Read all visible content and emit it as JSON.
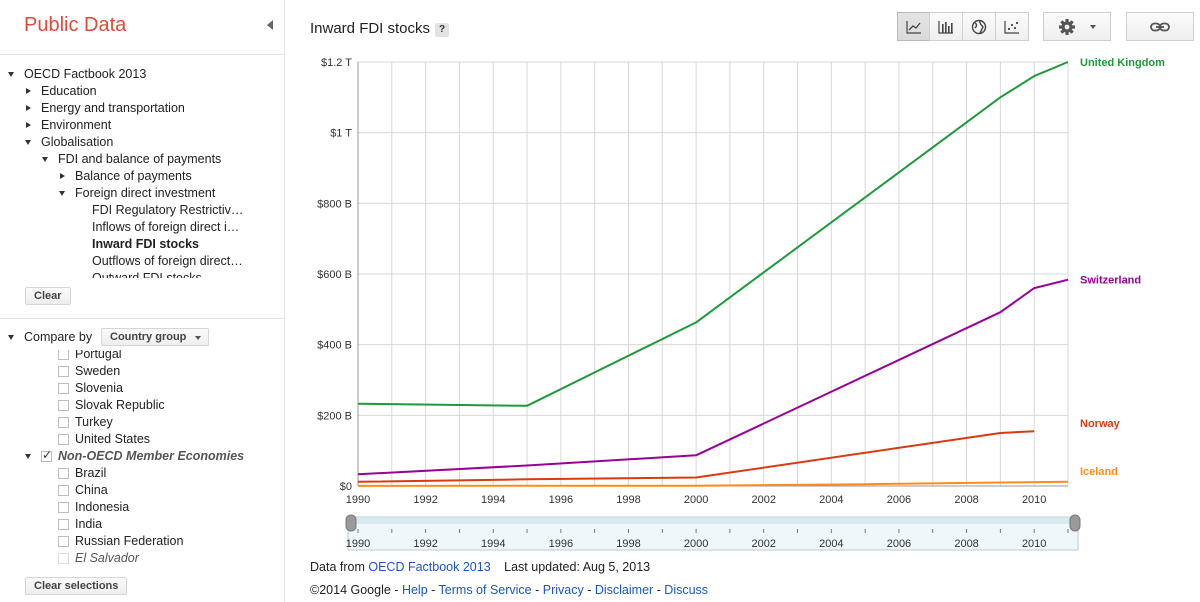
{
  "app": {
    "title": "Public Data"
  },
  "sidebar": {
    "tree": [
      {
        "label": "OECD Factbook 2013",
        "level": 0,
        "state": "open"
      },
      {
        "label": "Education",
        "level": 1,
        "state": "closed"
      },
      {
        "label": "Energy and transportation",
        "level": 1,
        "state": "closed"
      },
      {
        "label": "Environment",
        "level": 1,
        "state": "closed"
      },
      {
        "label": "Globalisation",
        "level": 1,
        "state": "open"
      },
      {
        "label": "FDI and balance of payments",
        "level": 2,
        "state": "open"
      },
      {
        "label": "Balance of payments",
        "level": 3,
        "state": "closed"
      },
      {
        "label": "Foreign direct investment",
        "level": 3,
        "state": "open"
      },
      {
        "label": "FDI Regulatory Restrictiv…",
        "level": 4,
        "state": "leaf"
      },
      {
        "label": "Inflows of foreign direct i…",
        "level": 4,
        "state": "leaf"
      },
      {
        "label": "Inward FDI stocks",
        "level": 4,
        "state": "leaf",
        "selected": true
      },
      {
        "label": "Outflows of foreign direct…",
        "level": 4,
        "state": "leaf"
      },
      {
        "label": "Outward FDI stocks",
        "level": 4,
        "state": "leaf"
      }
    ],
    "clear_label": "Clear",
    "compare_by_label": "Compare by",
    "compare_by_value": "Country group",
    "countries": [
      {
        "label": "Portugal",
        "checked": false,
        "indent": 1
      },
      {
        "label": "Sweden",
        "checked": false,
        "indent": 1
      },
      {
        "label": "Slovenia",
        "checked": false,
        "indent": 1
      },
      {
        "label": "Slovak Republic",
        "checked": false,
        "indent": 1
      },
      {
        "label": "Turkey",
        "checked": false,
        "indent": 1
      },
      {
        "label": "United States",
        "checked": false,
        "indent": 1
      },
      {
        "label": "Non-OECD Member Economies",
        "checked": true,
        "indent": 0,
        "group": true
      },
      {
        "label": "Brazil",
        "checked": false,
        "indent": 1
      },
      {
        "label": "China",
        "checked": false,
        "indent": 1
      },
      {
        "label": "Indonesia",
        "checked": false,
        "indent": 1
      },
      {
        "label": "India",
        "checked": false,
        "indent": 1
      },
      {
        "label": "Russian Federation",
        "checked": false,
        "indent": 1
      },
      {
        "label": "El Salvador",
        "checked": false,
        "indent": 1,
        "muted": true
      }
    ],
    "clear_selections_label": "Clear selections"
  },
  "main": {
    "chart_title": "Inward FDI stocks",
    "help_label": "?",
    "toolbar": [
      {
        "icon": "line-chart-icon",
        "active": true
      },
      {
        "icon": "bar-chart-icon",
        "active": false
      },
      {
        "icon": "globe-map-icon",
        "active": false
      },
      {
        "icon": "scatter-chart-icon",
        "active": false
      }
    ],
    "settings_icon": "gear-icon",
    "link_icon": "link-icon",
    "footer": {
      "data_from_prefix": "Data from",
      "source_link": "OECD Factbook 2013",
      "last_updated": "Last updated: Aug 5, 2013",
      "copyright": "©2014 Google",
      "links": [
        "Help",
        "Terms of Service",
        "Privacy",
        "Disclaimer",
        "Discuss"
      ],
      "separator": " - "
    }
  },
  "colors": {
    "brand": "#dd4b39",
    "uk": "#1e9a3c",
    "switzerland": "#990099",
    "norway": "#dc3912",
    "iceland": "#ff8c1a",
    "grid": "#d8d8d8"
  },
  "chart_data": {
    "type": "line",
    "title": "Inward FDI stocks",
    "xlabel": "",
    "ylabel": "",
    "xlim": [
      1990,
      2011
    ],
    "ylim": [
      0,
      1200
    ],
    "y_unit": "billion USD",
    "y_ticks": [
      "$0",
      "$200 B",
      "$400 B",
      "$600 B",
      "$800 B",
      "$1 T",
      "$1.2 T"
    ],
    "x_ticks": [
      "1990",
      "1992",
      "1994",
      "1996",
      "1998",
      "2000",
      "2002",
      "2004",
      "2006",
      "2008",
      "2010"
    ],
    "grid": true,
    "legend": "inline-right",
    "series": [
      {
        "name": "United Kingdom",
        "color": "#1e9a3c",
        "points": [
          [
            1990,
            233
          ],
          [
            1995,
            227
          ],
          [
            2000,
            463
          ],
          [
            2009,
            1100
          ],
          [
            2010,
            1160
          ],
          [
            2011,
            1200
          ]
        ]
      },
      {
        "name": "Switzerland",
        "color": "#990099",
        "points": [
          [
            1990,
            33
          ],
          [
            1995,
            58
          ],
          [
            2000,
            87
          ],
          [
            2009,
            492
          ],
          [
            2010,
            560
          ],
          [
            2011,
            584
          ]
        ]
      },
      {
        "name": "Norway",
        "color": "#dc3912",
        "points": [
          [
            1990,
            12
          ],
          [
            1995,
            19
          ],
          [
            2000,
            24
          ],
          [
            2009,
            150
          ],
          [
            2010,
            155
          ]
        ]
      },
      {
        "name": "Iceland",
        "color": "#ff8c1a",
        "points": [
          [
            1990,
            0.3
          ],
          [
            1995,
            0.5
          ],
          [
            2000,
            0.5
          ],
          [
            2005,
            5
          ],
          [
            2009,
            10
          ],
          [
            2011,
            12
          ]
        ]
      }
    ],
    "timeline": {
      "x_ticks": [
        "1990",
        "1992",
        "1994",
        "1996",
        "1998",
        "2000",
        "2002",
        "2004",
        "2006",
        "2008",
        "2010"
      ],
      "range": [
        1990,
        2011
      ]
    }
  }
}
